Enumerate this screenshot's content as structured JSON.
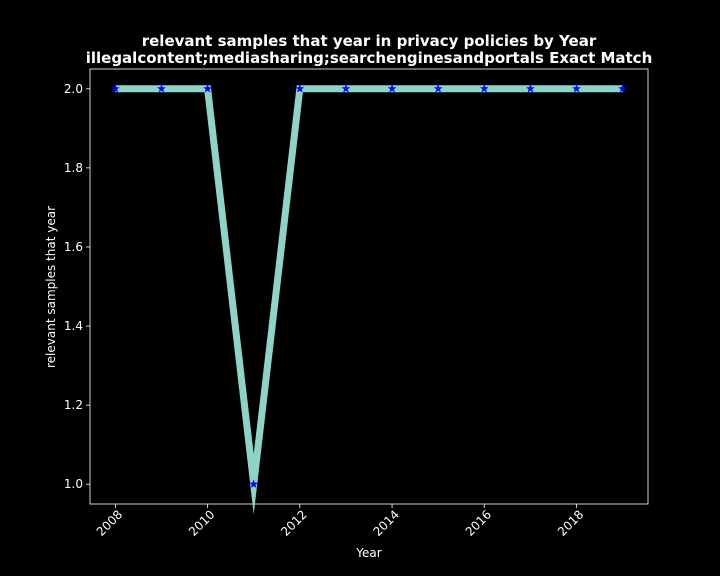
{
  "chart_data": {
    "type": "line",
    "title_line1": "relevant samples that year in privacy policies by Year",
    "title_line2": "illegalcontent;mediasharing;searchenginesandportals Exact Match",
    "xlabel": "Year",
    "ylabel": "relevant samples that year",
    "x": [
      2008,
      2009,
      2010,
      2011,
      2012,
      2013,
      2014,
      2015,
      2016,
      2017,
      2018,
      2019
    ],
    "series": [
      {
        "values": [
          2.0,
          2.0,
          2.0,
          1.0,
          2.0,
          2.0,
          2.0,
          2.0,
          2.0,
          2.0,
          2.0,
          2.0
        ]
      }
    ],
    "xlim": [
      2007.45,
      2019.55
    ],
    "ylim": [
      0.95,
      2.05
    ],
    "xticks": [
      2008,
      2010,
      2012,
      2014,
      2016,
      2018
    ],
    "yticks": [
      "1.0",
      "1.2",
      "1.4",
      "1.6",
      "1.8",
      "2.0"
    ],
    "line_color": "#8dd3c7",
    "marker_color": "#0000ff",
    "marker": "star",
    "background": "#000000",
    "foreground": "#ffffff",
    "grid": false,
    "legend": "none"
  }
}
